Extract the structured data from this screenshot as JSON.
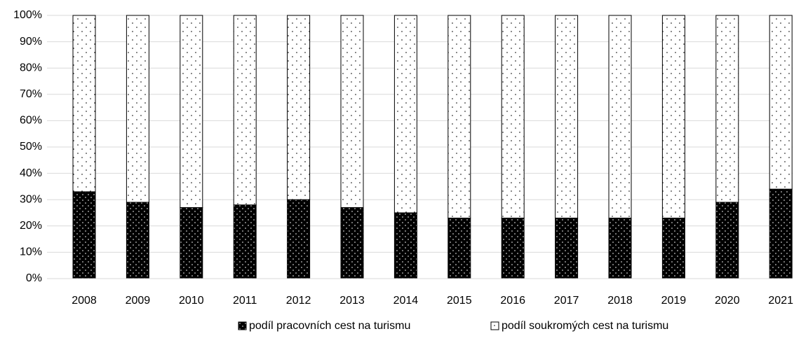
{
  "chart_data": {
    "type": "stacked_bar",
    "categories": [
      "2008",
      "2009",
      "2010",
      "2011",
      "2012",
      "2013",
      "2014",
      "2015",
      "2016",
      "2017",
      "2018",
      "2019",
      "2020",
      "2021"
    ],
    "series": [
      {
        "name": "podíl pracovních cest na turismu",
        "color": "#000000",
        "values": [
          33,
          29,
          27,
          28,
          30,
          27,
          25,
          23,
          23,
          23,
          23,
          23,
          29,
          34
        ]
      },
      {
        "name": "podíl soukromých cest na turismu",
        "color": "#ffffff",
        "values": [
          67,
          71,
          73,
          72,
          70,
          73,
          75,
          77,
          77,
          77,
          77,
          77,
          71,
          66
        ]
      }
    ],
    "ylim": [
      0,
      100
    ],
    "yticks": [
      {
        "value": 0,
        "label": "0%"
      },
      {
        "value": 10,
        "label": "10%"
      },
      {
        "value": 20,
        "label": "20%"
      },
      {
        "value": 30,
        "label": "30%"
      },
      {
        "value": 40,
        "label": "40%"
      },
      {
        "value": 50,
        "label": "50%"
      },
      {
        "value": 60,
        "label": "60%"
      },
      {
        "value": 70,
        "label": "70%"
      },
      {
        "value": 80,
        "label": "80%"
      },
      {
        "value": 90,
        "label": "90%"
      },
      {
        "value": 100,
        "label": "100%"
      }
    ],
    "grid": true,
    "legend": "bottom"
  }
}
